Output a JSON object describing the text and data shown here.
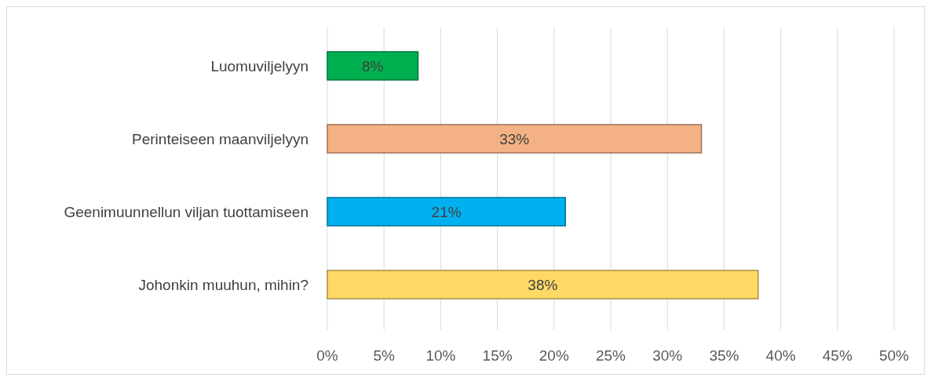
{
  "chart_data": {
    "type": "bar",
    "orientation": "horizontal",
    "categories": [
      "Luomuviljelyyn",
      "Perinteiseen maanviljelyyn",
      "Geenimuunnellun viljan tuottamiseen",
      "Johonkin muuhun, mihin?"
    ],
    "values": [
      8,
      33,
      21,
      38
    ],
    "value_labels": [
      "8%",
      "33%",
      "21%",
      "38%"
    ],
    "colors": [
      "#00b050",
      "#f4b183",
      "#00b0f0",
      "#ffd966"
    ],
    "xlim": [
      0,
      50
    ],
    "xticks": [
      {
        "value": 0,
        "label": "0%"
      },
      {
        "value": 5,
        "label": "5%"
      },
      {
        "value": 10,
        "label": "10%"
      },
      {
        "value": 15,
        "label": "15%"
      },
      {
        "value": 20,
        "label": "20%"
      },
      {
        "value": 25,
        "label": "25%"
      },
      {
        "value": 30,
        "label": "30%"
      },
      {
        "value": 35,
        "label": "35%"
      },
      {
        "value": 40,
        "label": "40%"
      },
      {
        "value": 45,
        "label": "45%"
      },
      {
        "value": 50,
        "label": "50%"
      }
    ],
    "grid": "x"
  }
}
